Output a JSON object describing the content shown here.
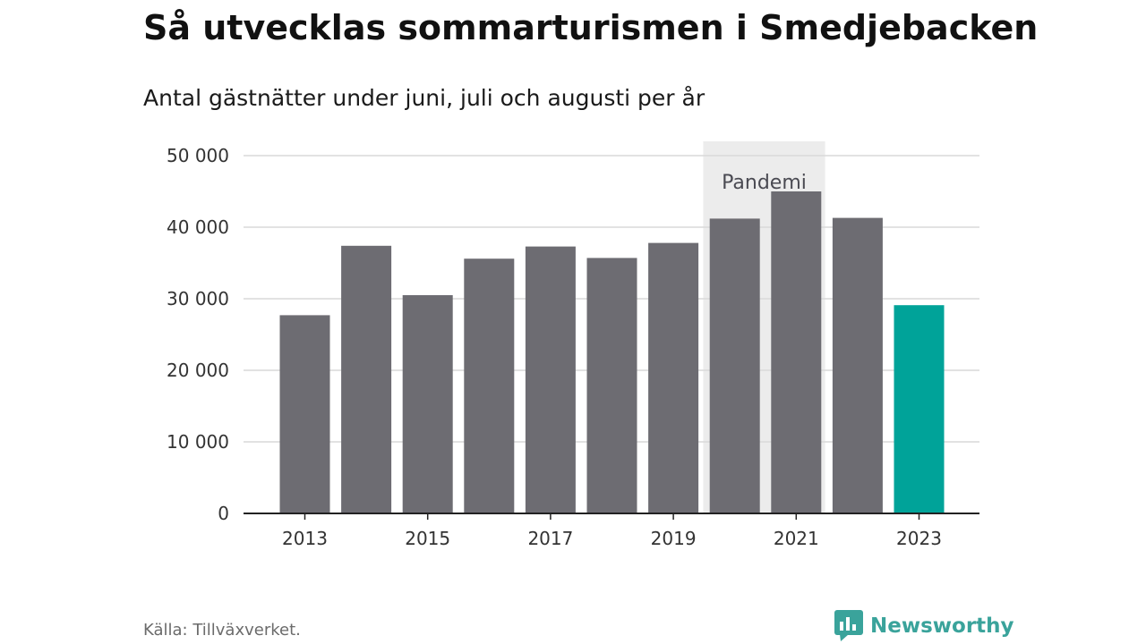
{
  "header": {
    "title": "Så utvecklas sommarturismen i Smedjebacken",
    "subtitle": "Antal gästnätter under juni, juli och augusti per år"
  },
  "footer": {
    "source": "Källa: Tillväxverket.",
    "brand": "Newsworthy"
  },
  "colors": {
    "bar": "#6d6c72",
    "highlight": "#00a399",
    "annotation_band": "#ececec",
    "grid": "#d9d9d9",
    "axis": "#222222",
    "brand": "#3aa39b"
  },
  "chart_data": {
    "type": "bar",
    "title": "Så utvecklas sommarturismen i Smedjebacken",
    "subtitle": "Antal gästnätter under juni, juli och augusti per år",
    "categories": [
      "2013",
      "2014",
      "2015",
      "2016",
      "2017",
      "2018",
      "2019",
      "2020",
      "2021",
      "2022",
      "2023"
    ],
    "values": [
      27700,
      37400,
      30500,
      35600,
      37300,
      35700,
      37800,
      41200,
      45000,
      41300,
      29100
    ],
    "highlight_category": "2023",
    "x_tick_labels": [
      "2013",
      "2015",
      "2017",
      "2019",
      "2021",
      "2023"
    ],
    "y_ticks": [
      0,
      10000,
      20000,
      30000,
      40000,
      50000
    ],
    "y_tick_labels": [
      "0",
      "10 000",
      "20 000",
      "30 000",
      "40 000",
      "50 000"
    ],
    "ylim": [
      0,
      50000
    ],
    "xlabel": "",
    "ylabel": "",
    "grid": true,
    "annotation": {
      "label": "Pandemi",
      "from": "2020",
      "to": "2021"
    }
  }
}
